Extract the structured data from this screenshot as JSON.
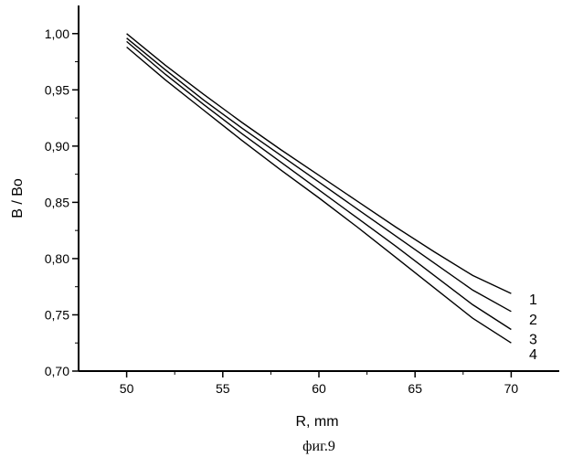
{
  "chart_data": {
    "type": "line",
    "xlabel": "R, mm",
    "ylabel": "B / Bo",
    "xlim": [
      47.5,
      72.5
    ],
    "ylim": [
      0.7,
      1.025
    ],
    "xticks": [
      50,
      55,
      60,
      65,
      70
    ],
    "yticks": [
      0.7,
      0.75,
      0.8,
      0.85,
      0.9,
      0.95,
      1.0
    ],
    "xtick_labels": [
      "50",
      "55",
      "60",
      "65",
      "70"
    ],
    "ytick_labels": [
      "0,70",
      "0,75",
      "0,80",
      "0,85",
      "0,90",
      "0,95",
      "1,00"
    ],
    "grid": false,
    "x": [
      50,
      52,
      54,
      56,
      58,
      60,
      62,
      64,
      66,
      68,
      70
    ],
    "series": [
      {
        "name": "1",
        "values": [
          1.0,
          0.972,
          0.946,
          0.921,
          0.897,
          0.874,
          0.851,
          0.828,
          0.806,
          0.785,
          0.769
        ]
      },
      {
        "name": "2",
        "values": [
          0.996,
          0.968,
          0.941,
          0.916,
          0.892,
          0.868,
          0.844,
          0.82,
          0.796,
          0.772,
          0.753
        ]
      },
      {
        "name": "3",
        "values": [
          0.993,
          0.964,
          0.937,
          0.911,
          0.886,
          0.861,
          0.836,
          0.811,
          0.785,
          0.759,
          0.737
        ]
      },
      {
        "name": "4",
        "values": [
          0.988,
          0.959,
          0.932,
          0.905,
          0.879,
          0.854,
          0.828,
          0.801,
          0.774,
          0.747,
          0.725
        ]
      }
    ]
  },
  "caption": "фиг.9"
}
